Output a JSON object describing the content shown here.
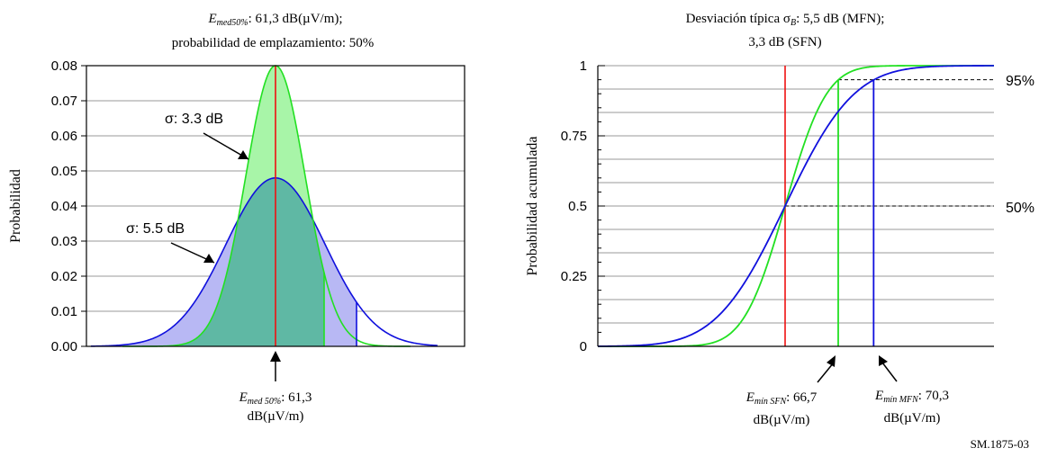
{
  "colors": {
    "narrow_curve": "#22e022",
    "wide_curve": "#1010dd",
    "median_line": "#ee1111",
    "narrow_fill": "#a8f5a8",
    "wide_fill": "#b8b8f4",
    "overlap_fill": "#5fb8a4",
    "grid": "#999999"
  },
  "chart_data": [
    {
      "type": "area",
      "title_line1_E": "E",
      "title_line1_sub": "med50%",
      "title_line1_rest": ": 61,3 dB(µV/m);",
      "title_line2": "probabilidad de emplazamiento: 50%",
      "ylabel": "Probabilidad",
      "xlabel": "",
      "ylim": [
        0,
        0.08
      ],
      "ytick_labels": [
        "0.00",
        "0.01",
        "0.02",
        "0.03",
        "0.04",
        "0.05",
        "0.06",
        "0.07",
        "0.08"
      ],
      "grid": true,
      "median": 61.3,
      "series": [
        {
          "name": "σ: 3.3 dB",
          "sigma": 3.3,
          "mean": 61.3,
          "peak": 0.08,
          "shaded_up_to": 66.7
        },
        {
          "name": "σ: 5.5 dB",
          "sigma": 5.5,
          "mean": 61.3,
          "peak": 0.048,
          "shaded_up_to": 70.3
        }
      ],
      "annotations": {
        "narrow_label": "σ:  3.3 dB",
        "wide_label": "σ:  5.5 dB",
        "median_E": "E",
        "median_sub": "med 50%",
        "median_rest": ": 61,3",
        "median_unit": "dB(µV/m)"
      }
    },
    {
      "type": "line",
      "title_line1_pre": "Desviación típica σ",
      "title_line1_sub": "B",
      "title_line1_rest": ": 5,5 dB (MFN);",
      "title_line2": "3,3 dB (SFN)",
      "ylabel": "Probabilidad acumulada",
      "xlabel": "",
      "ylim": [
        0,
        1
      ],
      "ytick_labels": [
        "0",
        "0.25",
        "0.5",
        "0.75",
        "1"
      ],
      "grid": true,
      "series": [
        {
          "name": "SFN",
          "sigma": 3.3,
          "mean": 61.3
        },
        {
          "name": "MFN",
          "sigma": 5.5,
          "mean": 61.3
        }
      ],
      "reference_levels": [
        {
          "y": 0.5,
          "label": "50%"
        },
        {
          "y": 0.95,
          "label": "95%"
        }
      ],
      "markers": [
        {
          "name": "SFN",
          "x": 66.7,
          "E": "E",
          "sub": "mín SFN",
          "value": ": 66,7",
          "unit": "dB(µV/m)"
        },
        {
          "name": "MFN",
          "x": 70.3,
          "E": "E",
          "sub": "mín MFN",
          "value": ": 70,3",
          "unit": "dB(µV/m)"
        }
      ]
    }
  ],
  "figure_ref": "SM.1875-03"
}
